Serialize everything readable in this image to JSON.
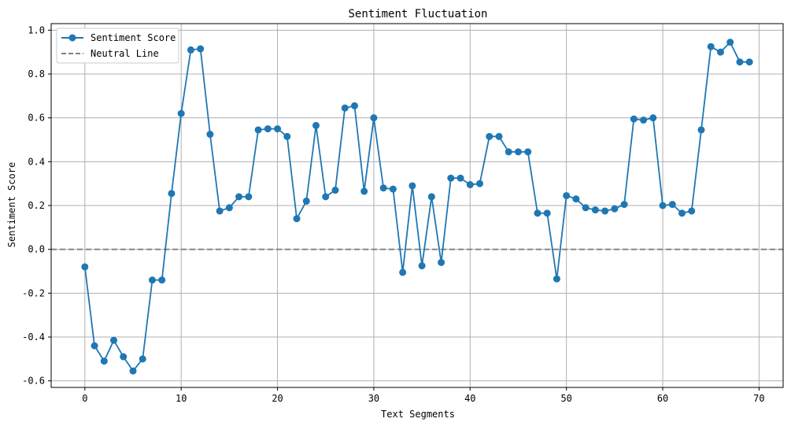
{
  "chart_data": {
    "type": "line",
    "title": "Sentiment Fluctuation",
    "xlabel": "Text Segments",
    "ylabel": "Sentiment Score",
    "xlim": [
      -3.5,
      72.5
    ],
    "ylim": [
      -0.63,
      1.03
    ],
    "xticks": [
      0,
      10,
      20,
      30,
      40,
      50,
      60,
      70
    ],
    "yticks": [
      -0.6,
      -0.4,
      -0.2,
      0.0,
      0.2,
      0.4,
      0.6,
      0.8,
      1.0
    ],
    "xtick_labels": [
      "0",
      "10",
      "20",
      "30",
      "40",
      "50",
      "60",
      "70"
    ],
    "ytick_labels": [
      "-0.6",
      "-0.4",
      "-0.2",
      "0.0",
      "0.2",
      "0.4",
      "0.6",
      "0.8",
      "1.0"
    ],
    "grid": true,
    "legend_position": "top-left",
    "series": [
      {
        "name": "Sentiment Score",
        "color": "#1f77b4",
        "marker": "circle",
        "x": [
          0,
          1,
          2,
          3,
          4,
          5,
          6,
          7,
          8,
          9,
          10,
          11,
          12,
          13,
          14,
          15,
          16,
          17,
          18,
          19,
          20,
          21,
          22,
          23,
          24,
          25,
          26,
          27,
          28,
          29,
          30,
          31,
          32,
          33,
          34,
          35,
          36,
          37,
          38,
          39,
          40,
          41,
          42,
          43,
          44,
          45,
          46,
          47,
          48,
          49,
          50,
          51,
          52,
          53,
          54,
          55,
          56,
          57,
          58,
          59,
          60,
          61,
          62,
          63,
          64,
          65,
          66,
          67,
          68,
          69
        ],
        "values": [
          -0.08,
          -0.44,
          -0.51,
          -0.415,
          -0.49,
          -0.555,
          -0.5,
          -0.14,
          -0.14,
          0.255,
          0.62,
          0.91,
          0.915,
          0.525,
          0.175,
          0.19,
          0.24,
          0.24,
          0.545,
          0.55,
          0.55,
          0.515,
          0.14,
          0.22,
          0.565,
          0.24,
          0.27,
          0.645,
          0.655,
          0.265,
          0.6,
          0.28,
          0.275,
          -0.105,
          0.29,
          -0.075,
          0.24,
          -0.06,
          0.325,
          0.325,
          0.295,
          0.3,
          0.515,
          0.515,
          0.445,
          0.445,
          0.445,
          0.165,
          0.165,
          -0.135,
          0.245,
          0.23,
          0.19,
          0.18,
          0.175,
          0.185,
          0.205,
          0.595,
          0.59,
          0.6,
          0.2,
          0.205,
          0.165,
          0.175,
          0.545,
          0.925,
          0.9,
          0.945,
          0.855,
          0.855
        ]
      }
    ],
    "reference_lines": [
      {
        "name": "Neutral Line",
        "y": 0.0,
        "color": "#808080",
        "style": "dashed"
      }
    ]
  }
}
